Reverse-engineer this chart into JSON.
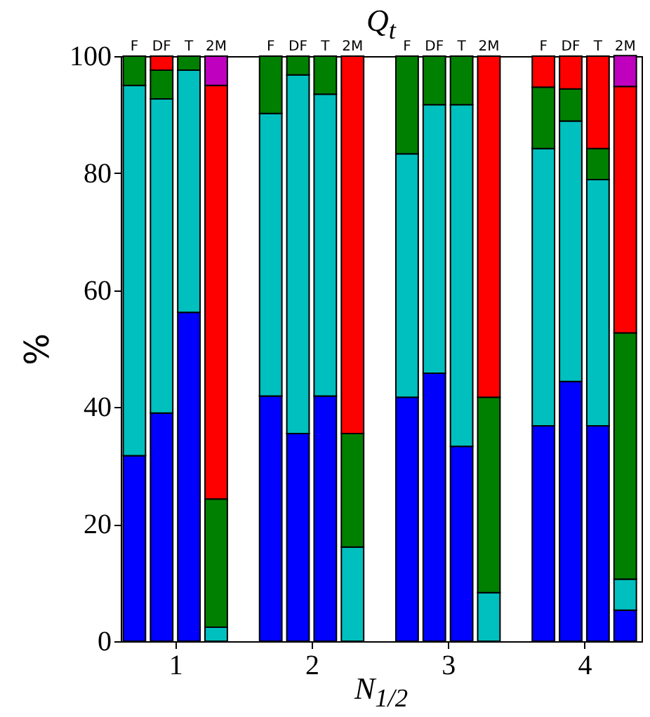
{
  "chart_data": {
    "type": "bar",
    "title": "Q$_{t}$",
    "xlabel": "N$_{1/2}$",
    "ylabel": "%",
    "stacked": true,
    "grid": false,
    "legend": false,
    "x": [
      0.7,
      0.9,
      1.1,
      1.3,
      1.7,
      1.9,
      2.1,
      2.3,
      2.7,
      2.9,
      3.1,
      3.3,
      3.7,
      3.9,
      4.1,
      4.3
    ],
    "xlim": [
      0.6,
      4.42
    ],
    "xticks": [
      1,
      2,
      3,
      4
    ],
    "ylim": [
      0,
      100
    ],
    "yticks": [
      0,
      20,
      40,
      60,
      80,
      100
    ],
    "series": [
      {
        "color": "#0000ff",
        "values": [
          31.7,
          39,
          56.2,
          null,
          41.9,
          35.5,
          41.9,
          null,
          41.7,
          45.8,
          33.3,
          null,
          36.8,
          44.4,
          36.8,
          5.3
        ]
      },
      {
        "color": "#00bfbf",
        "values": [
          63.3,
          53.7,
          41.4,
          2.4,
          48.3,
          61.3,
          51.6,
          16.1,
          41.6,
          45.9,
          58.4,
          8.3,
          47.4,
          44.5,
          42.1,
          5.3
        ]
      },
      {
        "color": "#008000",
        "values": [
          5,
          4.9,
          2.4,
          21.9,
          9.8,
          3.2,
          6.5,
          19.4,
          16.7,
          8.3,
          8.3,
          33.4,
          10.5,
          5.5,
          5.3,
          42.1
        ]
      },
      {
        "color": "#ff0000",
        "values": [
          null,
          2.4,
          null,
          70.7,
          null,
          null,
          null,
          64.5,
          null,
          null,
          null,
          58.3,
          5.3,
          5.6,
          15.8,
          42.1
        ]
      },
      {
        "color": "#bf00bf",
        "values": [
          null,
          null,
          null,
          5,
          null,
          null,
          null,
          null,
          null,
          null,
          null,
          null,
          null,
          null,
          null,
          5.3
        ]
      }
    ],
    "annotations": [
      {
        "text": "F",
        "x": 0.7,
        "y": 100
      },
      {
        "text": "DF",
        "x": 0.9,
        "y": 100
      },
      {
        "text": "T",
        "x": 1.1,
        "y": 100
      },
      {
        "text": "2M",
        "x": 1.3,
        "y": 100
      },
      {
        "text": "F",
        "x": 1.7,
        "y": 100
      },
      {
        "text": "DF",
        "x": 1.9,
        "y": 100
      },
      {
        "text": "T",
        "x": 2.1,
        "y": 100
      },
      {
        "text": "2M",
        "x": 2.3,
        "y": 100
      },
      {
        "text": "F",
        "x": 2.7,
        "y": 100
      },
      {
        "text": "DF",
        "x": 2.9,
        "y": 100
      },
      {
        "text": "T",
        "x": 3.1,
        "y": 100
      },
      {
        "text": "2M",
        "x": 3.3,
        "y": 100
      },
      {
        "text": "F",
        "x": 3.7,
        "y": 100
      },
      {
        "text": "DF",
        "x": 3.9,
        "y": 100
      },
      {
        "text": "T",
        "x": 4.1,
        "y": 100
      },
      {
        "text": "2M",
        "x": 4.3,
        "y": 100
      }
    ]
  }
}
